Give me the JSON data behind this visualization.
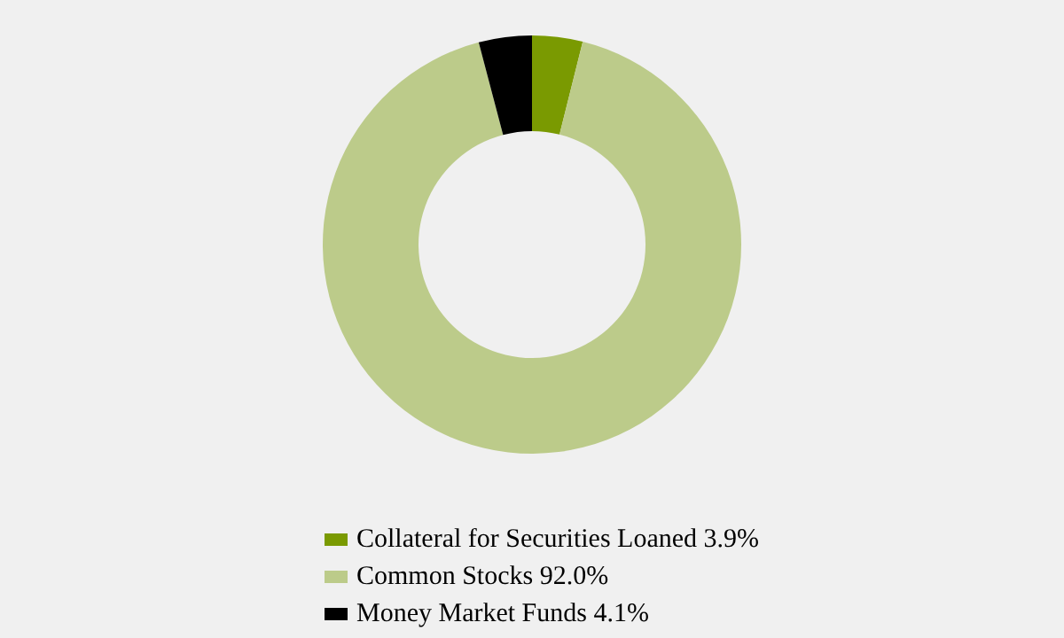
{
  "chart_data": {
    "type": "donut",
    "categories": [
      "Collateral for Securities Loaned",
      "Common Stocks",
      "Money Market Funds"
    ],
    "values": [
      3.9,
      92.0,
      4.1
    ],
    "value_labels": [
      "3.9%",
      "92.0%",
      "4.1%"
    ],
    "colors": [
      "#7a9a01",
      "#bccb8a",
      "#000000"
    ],
    "legend": "bottom"
  }
}
